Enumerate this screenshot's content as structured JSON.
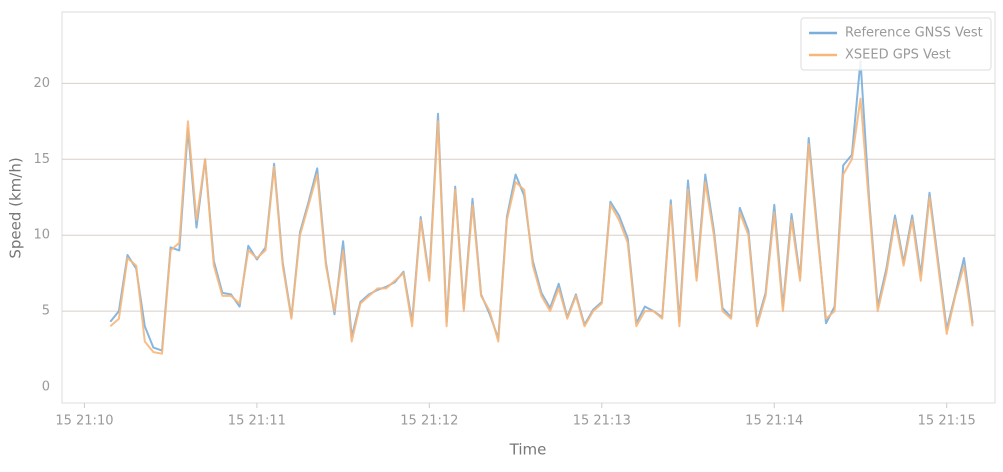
{
  "chart_data": {
    "type": "line",
    "xlabel": "Time",
    "ylabel": "Speed (km/h)",
    "x": [
      0.15,
      0.2,
      0.25,
      0.3,
      0.35,
      0.4,
      0.45,
      0.5,
      0.55,
      0.6,
      0.65,
      0.7,
      0.75,
      0.8,
      0.85,
      0.9,
      0.95,
      1.0,
      1.05,
      1.1,
      1.15,
      1.2,
      1.25,
      1.3,
      1.35,
      1.4,
      1.45,
      1.5,
      1.55,
      1.6,
      1.65,
      1.7,
      1.75,
      1.8,
      1.85,
      1.9,
      1.95,
      2.0,
      2.05,
      2.1,
      2.15,
      2.2,
      2.25,
      2.3,
      2.35,
      2.4,
      2.45,
      2.5,
      2.55,
      2.6,
      2.65,
      2.7,
      2.75,
      2.8,
      2.85,
      2.9,
      2.95,
      3.0,
      3.05,
      3.1,
      3.15,
      3.2,
      3.25,
      3.3,
      3.35,
      3.4,
      3.45,
      3.5,
      3.55,
      3.6,
      3.65,
      3.7,
      3.75,
      3.8,
      3.85,
      3.9,
      3.95,
      4.0,
      4.05,
      4.1,
      4.15,
      4.2,
      4.25,
      4.3,
      4.35,
      4.4,
      4.45,
      4.5,
      4.55,
      4.6,
      4.65,
      4.7,
      4.75,
      4.8,
      4.85,
      4.9,
      4.95,
      5.0,
      5.05,
      5.1,
      5.15
    ],
    "series": [
      {
        "name": "Reference GNSS Vest",
        "color": "#7aaedc",
        "values": [
          4.3,
          5,
          8.7,
          7.8,
          4,
          2.6,
          2.4,
          9.2,
          9,
          17,
          10.5,
          15,
          8.3,
          6.2,
          6.1,
          5.3,
          9.3,
          8.4,
          9.2,
          14.7,
          8.2,
          4.6,
          10.2,
          12.2,
          14.4,
          8.2,
          4.8,
          9.6,
          3.3,
          5.6,
          6.1,
          6.4,
          6.6,
          6.9,
          7.6,
          4.3,
          11.2,
          7.2,
          18,
          4.3,
          13.2,
          5.2,
          12.4,
          6.1,
          4.8,
          3.2,
          11.2,
          14,
          12.6,
          8.3,
          6.2,
          5.2,
          6.8,
          4.6,
          6.1,
          4.1,
          5.1,
          5.6,
          12.2,
          11.3,
          9.8,
          4.2,
          5.3,
          5,
          4.6,
          12.3,
          4.3,
          13.6,
          7.2,
          14,
          10.3,
          5.2,
          4.6,
          11.8,
          10.3,
          4.2,
          6.2,
          12,
          5.3,
          11.4,
          7.2,
          16.4,
          10.3,
          4.2,
          5.3,
          14.6,
          15.3,
          21.5,
          12.4,
          5.3,
          7.8,
          11.3,
          8.2,
          11.3,
          7.4,
          12.8,
          8.3,
          3.8,
          6.1,
          8.5,
          4.2
        ]
      },
      {
        "name": "XSEED GPS Vest",
        "color": "#f8b77a",
        "values": [
          4,
          4.5,
          8.5,
          8,
          3,
          2.3,
          2.2,
          9,
          9.5,
          17.5,
          11,
          15,
          8,
          6,
          6,
          5.5,
          9,
          8.5,
          9,
          14.5,
          8,
          4.5,
          10,
          12,
          14,
          8,
          5,
          9,
          3,
          5.5,
          6,
          6.5,
          6.5,
          7,
          7.5,
          4,
          11,
          7,
          17.5,
          4,
          13,
          5,
          12,
          6,
          5,
          3,
          11,
          13.5,
          13,
          8,
          6,
          5,
          6.5,
          4.5,
          6,
          4,
          5,
          5.5,
          12,
          11,
          9.5,
          4,
          5,
          5,
          4.5,
          12,
          4,
          13,
          7,
          13.5,
          10,
          5,
          4.5,
          11.5,
          10,
          4,
          6,
          11.5,
          5,
          11,
          7,
          16,
          10,
          4.5,
          5,
          14,
          15,
          19,
          12,
          5,
          7.5,
          11,
          8,
          11,
          7,
          12.5,
          8,
          3.5,
          6,
          8,
          4
        ]
      }
    ],
    "xlim": [
      -0.13,
      5.28
    ],
    "xticks": [
      {
        "value": 0,
        "label": "15 21:10"
      },
      {
        "value": 1,
        "label": "15 21:11"
      },
      {
        "value": 2,
        "label": "15 21:12"
      },
      {
        "value": 3,
        "label": "15 21:13"
      },
      {
        "value": 4,
        "label": "15 21:14"
      },
      {
        "value": 5,
        "label": "15 21:15"
      }
    ],
    "ylim": [
      -1.05,
      24.7
    ],
    "yticks": [
      0,
      5,
      10,
      15,
      20
    ],
    "grid": true,
    "legend": "upper right"
  }
}
